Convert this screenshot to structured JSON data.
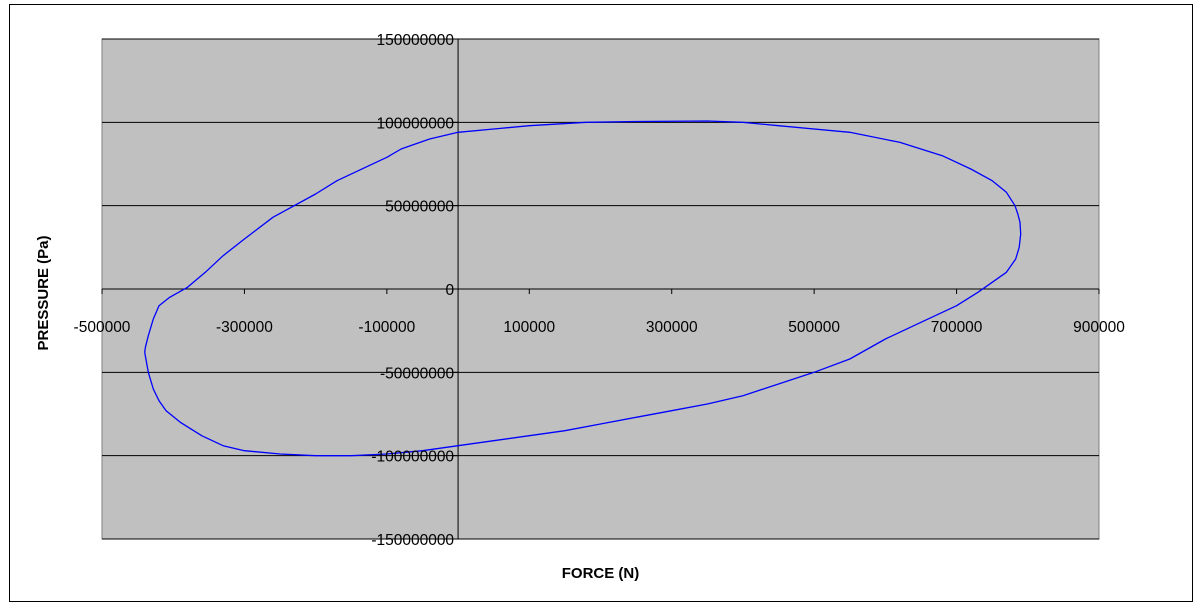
{
  "chart_data": {
    "type": "line",
    "title": "",
    "xlabel": "FORCE (N)",
    "ylabel": "PRESSURE (Pa)",
    "xlim": [
      -500000,
      900000
    ],
    "ylim": [
      -150000000,
      150000000
    ],
    "x_ticks": [
      -500000,
      -300000,
      -100000,
      100000,
      300000,
      500000,
      700000,
      900000
    ],
    "y_ticks": [
      -150000000,
      -100000000,
      -50000000,
      0,
      50000000,
      100000000,
      150000000
    ],
    "x_tick_labels": [
      "-500000",
      "-300000",
      "-100000",
      "100000",
      "300000",
      "500000",
      "700000",
      "900000"
    ],
    "y_tick_labels": [
      "-150000000",
      "-100000000",
      "-50000000",
      "0",
      "50000000",
      "100000000",
      "150000000"
    ],
    "horizontal_grid": true,
    "vertical_grid": false,
    "legend": "none",
    "plot_background": "#c0c0c0",
    "series": [
      {
        "color": "#0000ff",
        "x": [
          -440000,
          -439000,
          -435000,
          -428000,
          -420000,
          -405000,
          -380000,
          -355000,
          -330000,
          -300000,
          -260000,
          -200000,
          -170000,
          -130000,
          -100000,
          -80000,
          -60000,
          -40000,
          0,
          50000,
          100000,
          180000,
          250000,
          350000,
          400000,
          450000,
          550000,
          620000,
          680000,
          720000,
          750000,
          770000,
          782000,
          786000,
          789000,
          790000,
          788000,
          783000,
          770000,
          750000,
          730000,
          700000,
          650000,
          600000,
          550000,
          500000,
          450000,
          400000,
          350000,
          300000,
          250000,
          200000,
          150000,
          100000,
          50000,
          0,
          -50000,
          -100000,
          -150000,
          -200000,
          -250000,
          -300000,
          -330000,
          -360000,
          -390000,
          -410000,
          -420000,
          -428000,
          -435000,
          -440000
        ],
        "y": [
          -38000000,
          -35000000,
          -28000000,
          -18000000,
          -10000000,
          -5000000,
          1000000,
          10000000,
          20000000,
          30000000,
          43000000,
          57000000,
          65000000,
          73000000,
          79000000,
          84000000,
          87000000,
          90000000,
          94000000,
          96000000,
          98000000,
          100000000,
          100500000,
          100800000,
          100000000,
          98000000,
          94000000,
          88000000,
          80000000,
          72000000,
          65000000,
          58000000,
          50000000,
          45000000,
          40000000,
          33000000,
          25000000,
          18000000,
          10000000,
          4000000,
          -2000000,
          -10000000,
          -20000000,
          -30000000,
          -42000000,
          -50000000,
          -57000000,
          -64000000,
          -69000000,
          -73000000,
          -77000000,
          -81000000,
          -85000000,
          -88000000,
          -91000000,
          -94000000,
          -97000000,
          -99000000,
          -100000000,
          -100000000,
          -99000000,
          -97000000,
          -94000000,
          -88000000,
          -80000000,
          -73000000,
          -67000000,
          -60000000,
          -50000000,
          -38000000
        ]
      }
    ]
  }
}
